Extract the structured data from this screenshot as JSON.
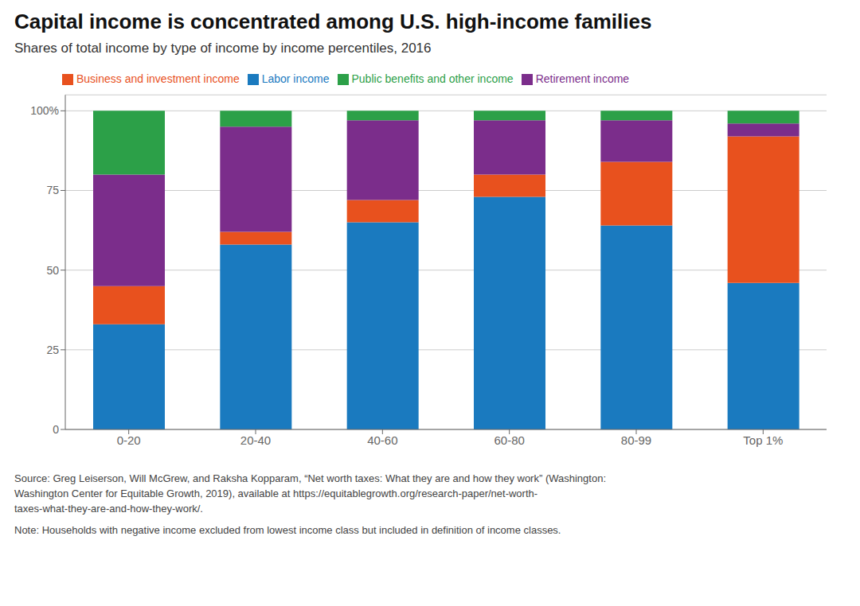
{
  "chart_data": {
    "type": "bar",
    "title": "Capital income is concentrated among U.S. high-income families",
    "subtitle": "Shares of total income by type of income by income percentiles, 2016",
    "categories": [
      "0-20",
      "20-40",
      "40-60",
      "60-80",
      "80-99",
      "Top 1%"
    ],
    "series": [
      {
        "name": "Labor income",
        "color": "#1a7abf",
        "values": [
          33,
          58,
          65,
          73,
          64,
          46
        ]
      },
      {
        "name": "Business and investment income",
        "color": "#e8511e",
        "values": [
          12,
          4,
          7,
          7,
          20,
          46
        ]
      },
      {
        "name": "Retirement income",
        "color": "#7b2d8b",
        "values": [
          35,
          33,
          25,
          17,
          13,
          4
        ]
      },
      {
        "name": "Public benefits and other income",
        "color": "#2ca048",
        "values": [
          20,
          5,
          3,
          3,
          3,
          4
        ]
      }
    ],
    "stacked": true,
    "ylim": [
      0,
      105
    ],
    "yticks": [
      0,
      25,
      50,
      75,
      {
        "value": 100,
        "label": "100%"
      }
    ],
    "grid": true,
    "legend": "top",
    "annotations": [
      "Source: Greg Leiserson, Will McGrew, and Raksha Kopparam, “Net worth taxes: What they are and how they work” (Washington:\nWashington Center for Equitable Growth, 2019), available at https://equitablegrowth.org/research-paper/net-worth-\ntaxes-what-they-are-and-how-they-work/.",
      "Note: Households with negative income excluded from lowest income class but included in definition of income classes."
    ]
  }
}
